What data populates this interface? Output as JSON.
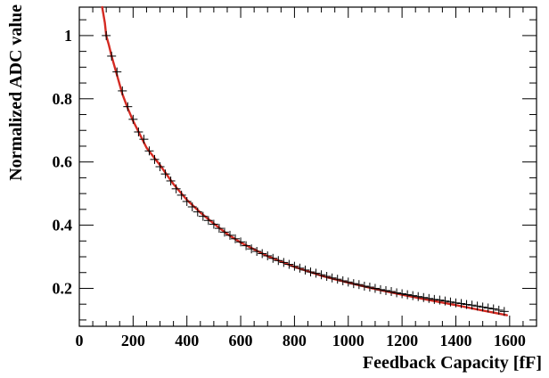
{
  "chart_data": {
    "type": "scatter",
    "title": "",
    "xlabel": "Feedback Capacity [fF]",
    "ylabel": "Normalized ADC value",
    "xlim": [
      0,
      1700
    ],
    "ylim": [
      0.08,
      1.09
    ],
    "x_ticks": [
      0,
      200,
      400,
      600,
      800,
      1000,
      1200,
      1400,
      1600
    ],
    "x_tick_labels": [
      "0",
      "200",
      "400",
      "600",
      "800",
      "1000",
      "1200",
      "1400",
      "1600"
    ],
    "y_ticks": [
      0.2,
      0.4,
      0.6,
      0.8,
      1.0
    ],
    "y_tick_labels": [
      "0.2",
      "0.4",
      "0.6",
      "0.8",
      "1"
    ],
    "grid": false,
    "legend": "none",
    "colors": {
      "data": "#000000",
      "fit": "#d42a22",
      "axis": "#000000"
    },
    "series": [
      {
        "kind": "points",
        "marker": "cross",
        "x": [
          100,
          120,
          140,
          160,
          180,
          200,
          220,
          240,
          260,
          280,
          300,
          320,
          340,
          360,
          380,
          400,
          420,
          440,
          460,
          480,
          500,
          520,
          540,
          560,
          580,
          600,
          620,
          640,
          660,
          680,
          700,
          720,
          740,
          760,
          780,
          800,
          820,
          840,
          860,
          880,
          900,
          920,
          940,
          960,
          980,
          1000,
          1020,
          1040,
          1060,
          1080,
          1100,
          1120,
          1140,
          1160,
          1180,
          1200,
          1220,
          1240,
          1260,
          1280,
          1300,
          1320,
          1340,
          1360,
          1380,
          1400,
          1420,
          1440,
          1460,
          1480,
          1500,
          1520,
          1540,
          1560,
          1580
        ],
        "y": [
          1.0,
          0.935,
          0.885,
          0.825,
          0.775,
          0.735,
          0.695,
          0.672,
          0.635,
          0.608,
          0.585,
          0.562,
          0.54,
          0.515,
          0.495,
          0.475,
          0.458,
          0.442,
          0.428,
          0.415,
          0.403,
          0.39,
          0.378,
          0.368,
          0.357,
          0.347,
          0.335,
          0.325,
          0.317,
          0.31,
          0.303,
          0.295,
          0.288,
          0.282,
          0.276,
          0.27,
          0.264,
          0.258,
          0.252,
          0.248,
          0.243,
          0.238,
          0.233,
          0.229,
          0.224,
          0.22,
          0.215,
          0.212,
          0.207,
          0.204,
          0.2,
          0.196,
          0.193,
          0.19,
          0.186,
          0.183,
          0.18,
          0.177,
          0.174,
          0.171,
          0.168,
          0.165,
          0.163,
          0.16,
          0.157,
          0.154,
          0.152,
          0.149,
          0.147,
          0.144,
          0.141,
          0.138,
          0.135,
          0.131,
          0.127
        ]
      },
      {
        "kind": "line",
        "x": [
          85,
          95,
          100,
          110,
          120,
          140,
          160,
          180,
          200,
          250,
          300,
          350,
          400,
          450,
          500,
          550,
          600,
          700,
          800,
          900,
          1000,
          1100,
          1200,
          1300,
          1400,
          1500,
          1590
        ],
        "y": [
          1.09,
          1.04,
          1.0,
          0.97,
          0.935,
          0.875,
          0.815,
          0.77,
          0.73,
          0.645,
          0.59,
          0.53,
          0.48,
          0.44,
          0.405,
          0.372,
          0.345,
          0.302,
          0.268,
          0.24,
          0.218,
          0.198,
          0.18,
          0.163,
          0.147,
          0.13,
          0.115
        ]
      }
    ]
  }
}
